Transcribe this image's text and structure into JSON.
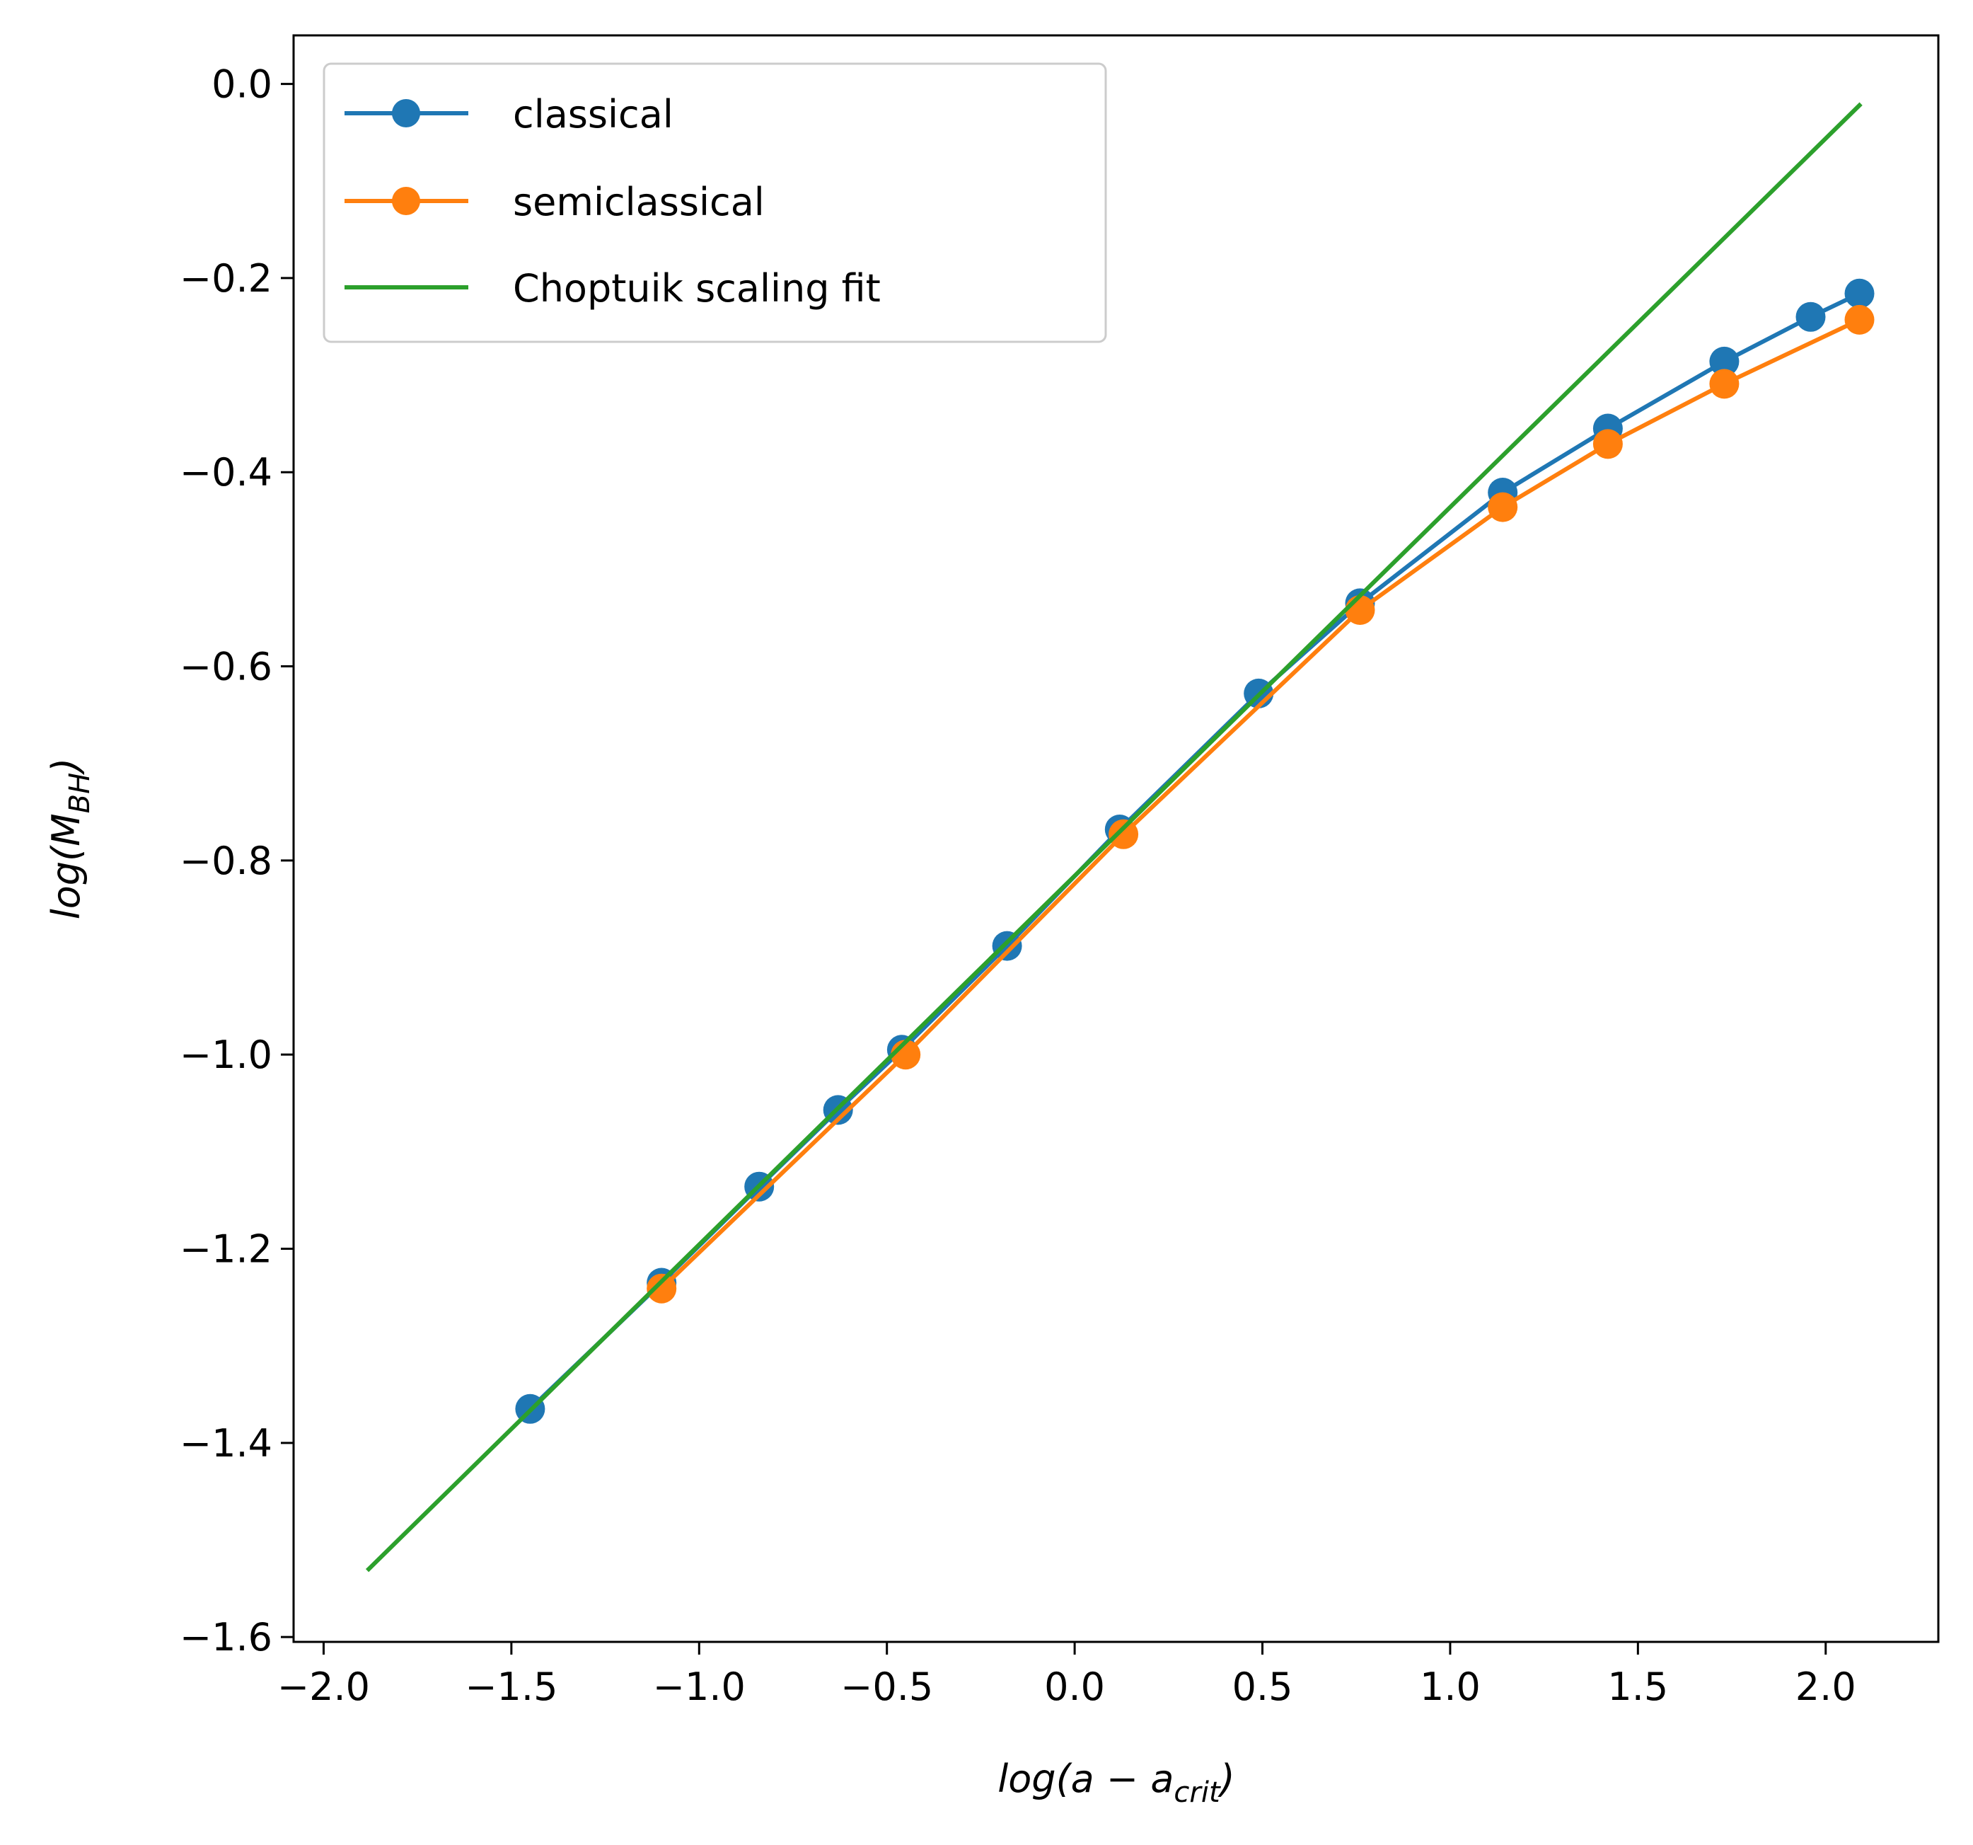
{
  "chart_data": {
    "type": "line",
    "title": "",
    "xlabel": "log(a − a_crit)",
    "ylabel": "log(M_BH)",
    "xlabel_parts": {
      "main": "log(a − a",
      "sub": "crit",
      "close": ")"
    },
    "ylabel_parts": {
      "main": "log(M",
      "sub": "BH",
      "close": ")"
    },
    "xlim": [
      -2.08,
      2.3
    ],
    "ylim": [
      -1.605,
      0.05
    ],
    "xticks": [
      -2.0,
      -1.5,
      -1.0,
      -0.5,
      0.0,
      0.5,
      1.0,
      1.5,
      2.0
    ],
    "xtick_labels": [
      "−2.0",
      "−1.5",
      "−1.0",
      "−0.5",
      "0.0",
      "0.5",
      "1.0",
      "1.5",
      "2.0"
    ],
    "yticks": [
      0.0,
      -0.2,
      -0.4,
      -0.6,
      -0.8,
      -1.0,
      -1.2,
      -1.4,
      -1.6
    ],
    "ytick_labels": [
      "0.0",
      "−0.2",
      "−0.4",
      "−0.6",
      "−0.8",
      "−1.0",
      "−1.2",
      "−1.4",
      "−1.6"
    ],
    "grid": false,
    "legend_position": "top-left",
    "series": [
      {
        "name": "classical",
        "color": "#1f77b4",
        "marker": "circle",
        "x": [
          -1.45,
          -1.1,
          -0.84,
          -0.63,
          -0.46,
          -0.18,
          0.12,
          0.49,
          0.76,
          1.14,
          1.42,
          1.73,
          1.96,
          2.09
        ],
        "y": [
          -1.365,
          -1.235,
          -1.136,
          -1.057,
          -0.995,
          -0.888,
          -0.768,
          -0.628,
          -0.535,
          -0.421,
          -0.355,
          -0.286,
          -0.24,
          -0.216
        ]
      },
      {
        "name": "semiclassical",
        "color": "#ff7f0e",
        "marker": "circle",
        "x": [
          -1.1,
          -0.45,
          0.13,
          0.76,
          1.14,
          1.42,
          1.73,
          2.09
        ],
        "y": [
          -1.241,
          -1.0,
          -0.773,
          -0.542,
          -0.436,
          -0.371,
          -0.309,
          -0.243
        ]
      },
      {
        "name": "Choptuik scaling fit",
        "color": "#2ca02c",
        "marker": "none",
        "x": [
          -1.88,
          2.09
        ],
        "y": [
          -1.53,
          -0.022
        ]
      }
    ]
  }
}
